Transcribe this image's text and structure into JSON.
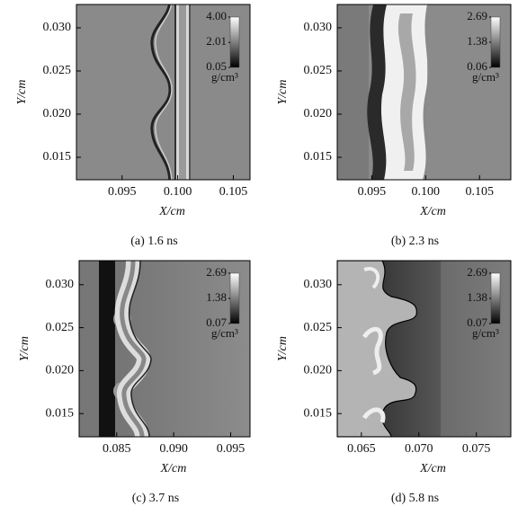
{
  "chart_data": [
    {
      "type": "field",
      "caption": "(a) 1.6 ns",
      "xlabel": "X/cm",
      "ylabel": "Y/cm",
      "xlim": [
        0.0909,
        0.1065
      ],
      "ylim": [
        0.0124,
        0.0327
      ],
      "xticks": [
        0.095,
        {
          "value": 0.1,
          "label": "0.100"
        },
        0.105
      ],
      "yticks": [
        {
          "value": 0.03,
          "label": "0.030"
        },
        0.025,
        {
          "value": 0.02,
          "label": "0.020"
        },
        0.015
      ],
      "clim": [
        0.05,
        4.0
      ],
      "cticks": [
        {
          "value": 4.0,
          "label": "4.00"
        },
        2.01,
        0.05
      ],
      "cunit": "g/cm³"
    },
    {
      "type": "field",
      "caption": "(b) 2.3 ns",
      "xlabel": "X/cm",
      "ylabel": "Y/cm",
      "xlim": [
        0.0918,
        0.1079
      ],
      "ylim": [
        0.0124,
        0.0327
      ],
      "xticks": [
        0.095,
        {
          "value": 0.1,
          "label": "0.100"
        },
        0.105
      ],
      "yticks": [
        {
          "value": 0.03,
          "label": "0.030"
        },
        0.025,
        {
          "value": 0.02,
          "label": "0.020"
        },
        0.015
      ],
      "clim": [
        0.06,
        2.69
      ],
      "cticks": [
        2.69,
        1.38,
        0.06
      ],
      "cunit": "g/cm³"
    },
    {
      "type": "field",
      "caption": "(c) 3.7 ns",
      "xlabel": "X/cm",
      "ylabel": "Y/cm",
      "xlim": [
        0.0817,
        0.0967
      ],
      "ylim": [
        0.0123,
        0.0328
      ],
      "xticks": [
        0.085,
        {
          "value": 0.09,
          "label": "0.090"
        },
        0.095
      ],
      "yticks": [
        {
          "value": 0.03,
          "label": "0.030"
        },
        0.025,
        {
          "value": 0.02,
          "label": "0.020"
        },
        0.015
      ],
      "clim": [
        0.07,
        2.69
      ],
      "cticks": [
        2.69,
        1.38,
        0.07
      ],
      "cunit": "g/cm³"
    },
    {
      "type": "field",
      "caption": "(d) 5.8 ns",
      "xlabel": "X/cm",
      "ylabel": "Y/cm",
      "xlim": [
        0.0629,
        0.078
      ],
      "ylim": [
        0.0123,
        0.0328
      ],
      "xticks": [
        0.065,
        {
          "value": 0.07,
          "label": "0.070"
        },
        0.075
      ],
      "yticks": [
        {
          "value": 0.03,
          "label": "0.030"
        },
        0.025,
        {
          "value": 0.02,
          "label": "0.020"
        },
        0.015
      ],
      "clim": [
        0.07,
        2.69
      ],
      "cticks": [
        2.69,
        1.38,
        0.07
      ],
      "cunit": "g/cm³"
    }
  ]
}
